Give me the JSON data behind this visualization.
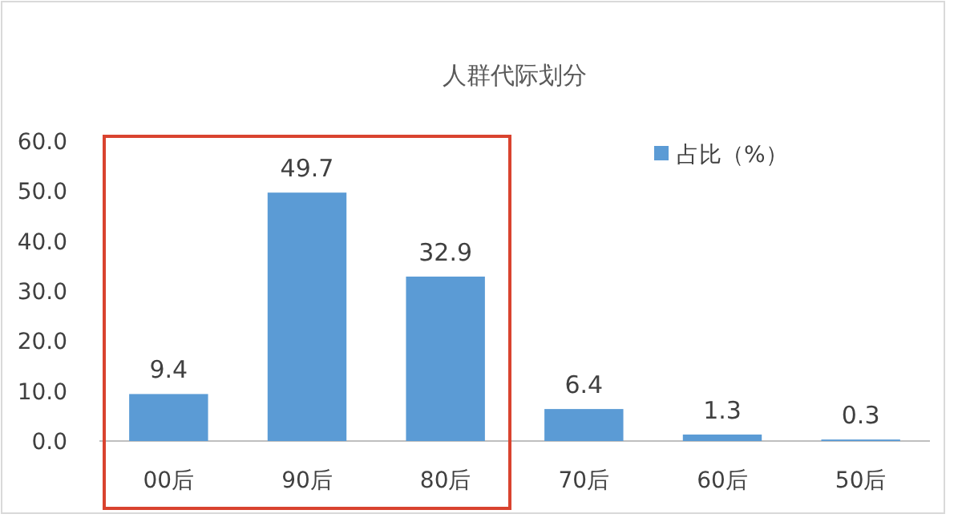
{
  "chart_data": {
    "type": "bar",
    "title": "人群代际划分",
    "categories": [
      "00后",
      "90后",
      "80后",
      "70后",
      "60后",
      "50后"
    ],
    "series": [
      {
        "name": "占比（%）",
        "color": "#5b9bd5",
        "values": [
          9.4,
          49.7,
          32.9,
          6.4,
          1.3,
          0.3
        ]
      }
    ],
    "ylim": [
      0,
      60
    ],
    "yticks": [
      {
        "value": 0,
        "label": "0.0"
      },
      {
        "value": 10,
        "label": "10.0"
      },
      {
        "value": 20,
        "label": "20.0"
      },
      {
        "value": 30,
        "label": "30.0"
      },
      {
        "value": 40,
        "label": "40.0"
      },
      {
        "value": 50,
        "label": "50.0"
      },
      {
        "value": 60,
        "label": "60.0"
      }
    ],
    "data_labels": true,
    "legend": "top right",
    "grid": false
  }
}
